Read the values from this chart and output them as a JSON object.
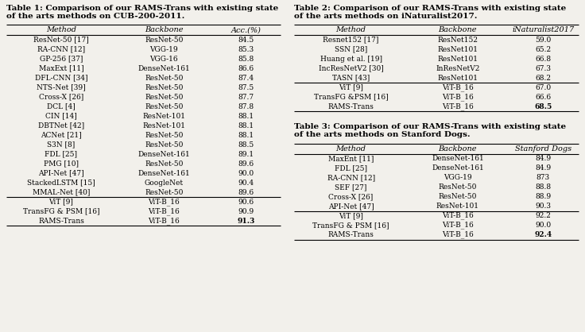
{
  "bg_color": "#f2f0eb",
  "table1": {
    "title_line1": "Table 1: Comparison of our RAMS-Trans with existing state",
    "title_line2": "of the arts methods on CUB-200-2011.",
    "headers": [
      "Method",
      "Backbone",
      "Acc.(%)"
    ],
    "rows": [
      [
        "ResNet-50 [17]",
        "ResNet-50",
        "84.5"
      ],
      [
        "RA-CNN [12]",
        "VGG-19",
        "85.3"
      ],
      [
        "GP-256 [37]",
        "VGG-16",
        "85.8"
      ],
      [
        "MaxExt [11]",
        "DenseNet-161",
        "86.6"
      ],
      [
        "DFL-CNN [34]",
        "ResNet-50",
        "87.4"
      ],
      [
        "NTS-Net [39]",
        "ResNet-50",
        "87.5"
      ],
      [
        "Cross-X [26]",
        "ResNet-50",
        "87.7"
      ],
      [
        "DCL [4]",
        "ResNet-50",
        "87.8"
      ],
      [
        "CIN [14]",
        "ResNet-101",
        "88.1"
      ],
      [
        "DBTNet [42]",
        "ResNet-101",
        "88.1"
      ],
      [
        "ACNet [21]",
        "ResNet-50",
        "88.1"
      ],
      [
        "S3N [8]",
        "ResNet-50",
        "88.5"
      ],
      [
        "FDL [25]",
        "DenseNet-161",
        "89.1"
      ],
      [
        "PMG [10]",
        "ResNet-50",
        "89.6"
      ],
      [
        "API-Net [47]",
        "DenseNet-161",
        "90.0"
      ],
      [
        "StackedLSTM [15]",
        "GoogleNet",
        "90.4"
      ],
      [
        "MMAL-Net [40]",
        "ResNet-50",
        "89.6"
      ]
    ],
    "vit_rows": [
      [
        "ViT [9]",
        "ViT-B_16",
        "90.6"
      ],
      [
        "TransFG & PSM [16]",
        "ViT-B_16",
        "90.9"
      ],
      [
        "RAMS-Trans",
        "ViT-B_16",
        "91.3"
      ]
    ]
  },
  "table2": {
    "title_line1": "Table 2: Comparison of our RAMS-Trans with existing state",
    "title_line2": "of the arts methods on iNaturalist2017.",
    "headers": [
      "Method",
      "Backbone",
      "iNaturalist2017"
    ],
    "rows": [
      [
        "Resnet152 [17]",
        "ResNet152",
        "59.0"
      ],
      [
        "SSN [28]",
        "ResNet101",
        "65.2"
      ],
      [
        "Huang et al. [19]",
        "ResNet101",
        "66.8"
      ],
      [
        "IncResNetV2 [30]",
        "InResNetV2",
        "67.3"
      ],
      [
        "TASN [43]",
        "ResNet101",
        "68.2"
      ]
    ],
    "vit_rows": [
      [
        "ViT [9]",
        "ViT-B_16",
        "67.0"
      ],
      [
        "TransFG &PSM [16]",
        "ViT-B_16",
        "66.6"
      ],
      [
        "RAMS-Trans",
        "ViT-B_16",
        "68.5"
      ]
    ]
  },
  "table3": {
    "title_line1": "Table 3: Comparison of our RAMS-Trans with existing state",
    "title_line2": "of the arts methods on Stanford Dogs.",
    "headers": [
      "Method",
      "Backbone",
      "Stanford Dogs"
    ],
    "rows": [
      [
        "MaxEnt [11]",
        "DenseNet-161",
        "84.9"
      ],
      [
        "FDL [25]",
        "DenseNet-161",
        "84.9"
      ],
      [
        "RA-CNN [12]",
        "VGG-19",
        "873"
      ],
      [
        "SEF [27]",
        "ResNet-50",
        "88.8"
      ],
      [
        "Cross-X [26]",
        "ResNet-50",
        "88.9"
      ],
      [
        "API-Net [47]",
        "ResNet-101",
        "90.3"
      ]
    ],
    "vit_rows": [
      [
        "ViT [9]",
        "ViT-B_16",
        "92.2"
      ],
      [
        "TransFG & PSM [16]",
        "ViT-B_16",
        "90.0"
      ],
      [
        "RAMS-Trans",
        "ViT-B_16",
        "92.4"
      ]
    ]
  }
}
